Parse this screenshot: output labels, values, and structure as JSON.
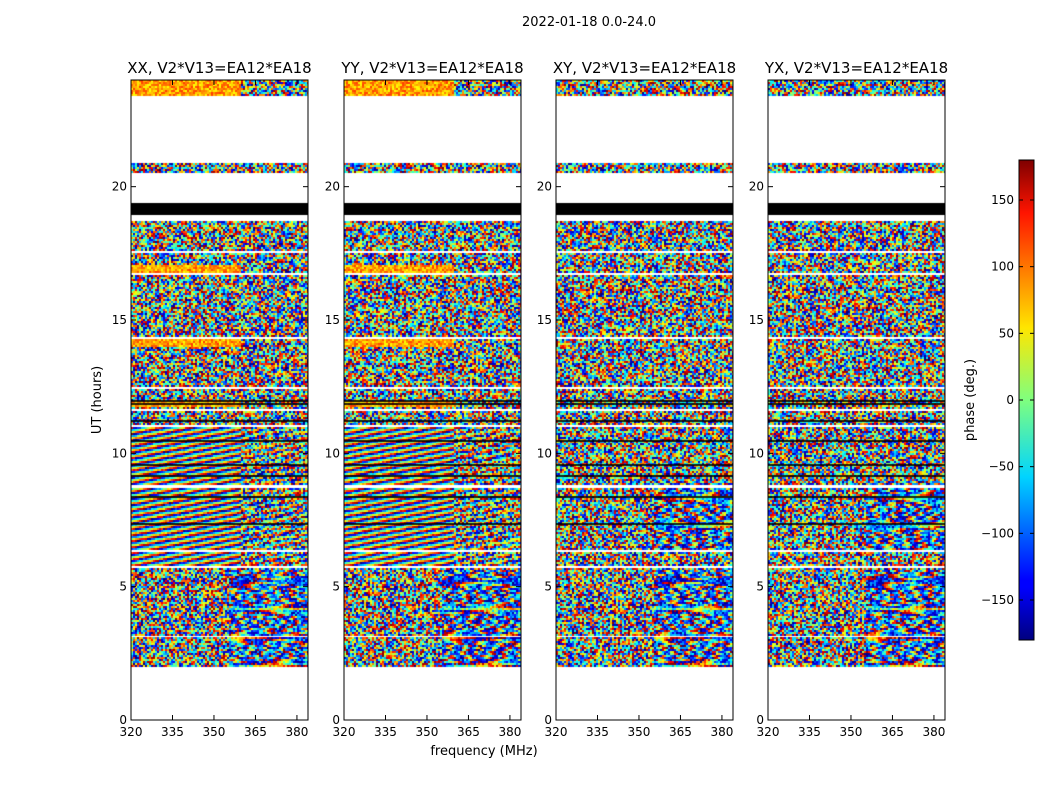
{
  "figure": {
    "title": "2022-01-18 0.0-24.0"
  },
  "chart_data": {
    "type": "heatmap",
    "title": "2022-01-18 0.0-24.0",
    "xlabel": "frequency (MHz)",
    "ylabel": "UT (hours)",
    "xlim": [
      320,
      384
    ],
    "ylim": [
      0,
      24
    ],
    "x_ticks": [
      "320",
      "335",
      "350",
      "365",
      "380"
    ],
    "y_ticks": [
      "0",
      "5",
      "10",
      "15",
      "20"
    ],
    "colormap": "jet",
    "colorbar": {
      "label": "phase (deg.)",
      "range": [
        -180,
        180
      ],
      "ticks": [
        "150",
        "100",
        "50",
        "0",
        "−50",
        "−100",
        "−150"
      ],
      "tick_values": [
        150,
        100,
        50,
        0,
        -50,
        -100,
        -150
      ]
    },
    "panels": [
      {
        "title": "XX, V2*V13=EA12*EA18",
        "polarization": "XX",
        "show_ylabel": true,
        "show_xlabel": false
      },
      {
        "title": "YY, V2*V13=EA12*EA18",
        "polarization": "YY",
        "show_ylabel": false,
        "show_xlabel": true
      },
      {
        "title": "XY, V2*V13=EA12*EA18",
        "polarization": "XY",
        "show_ylabel": false,
        "show_xlabel": false
      },
      {
        "title": "YX, V2*V13=EA12*EA18",
        "polarization": "YX",
        "show_ylabel": false,
        "show_xlabel": false
      }
    ],
    "data_segments_ut": [
      [
        2.0,
        3.1
      ],
      [
        3.15,
        3.45
      ],
      [
        3.5,
        5.7
      ],
      [
        5.8,
        6.3
      ],
      [
        6.4,
        8.7
      ],
      [
        8.8,
        11.0
      ],
      [
        11.05,
        11.6
      ],
      [
        11.7,
        12.4
      ],
      [
        12.5,
        14.3
      ],
      [
        14.4,
        16.7
      ],
      [
        16.8,
        17.5
      ],
      [
        17.6,
        18.7
      ],
      [
        20.5,
        20.9
      ],
      [
        23.4,
        24.0
      ]
    ],
    "flagged_black_ut": [
      [
        18.95,
        19.4
      ]
    ]
  }
}
